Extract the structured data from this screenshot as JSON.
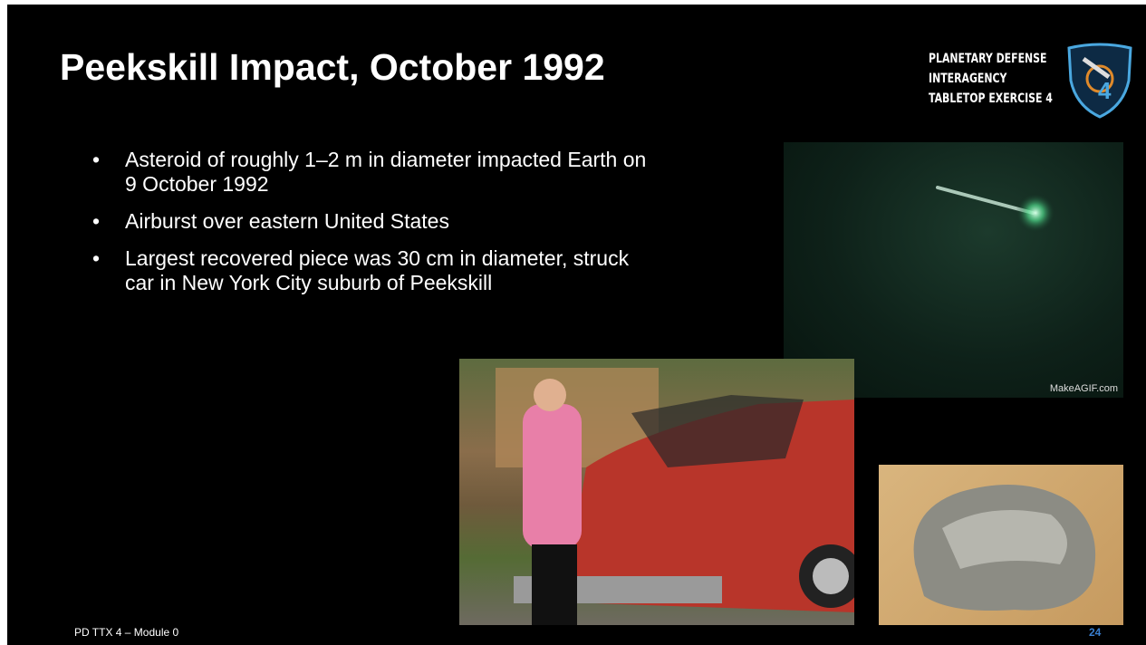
{
  "header": {
    "title": "Peekskill Impact, October 1992"
  },
  "logo": {
    "lines": [
      "PLANETARY DEFENSE",
      "INTERAGENCY",
      "TABLETOP EXERCISE 4"
    ]
  },
  "bullets": [
    "Asteroid of roughly 1–2 m in diameter impacted Earth on 9 October 1992",
    "Airburst over eastern United States",
    "Largest recovered piece was 30 cm in diameter, struck car in New York City suburb of Peekskill"
  ],
  "images": {
    "meteor_watermark": "MakeAGIF.com"
  },
  "footer": {
    "text": "PD TTX 4 – Module 0",
    "page_number": "24"
  }
}
